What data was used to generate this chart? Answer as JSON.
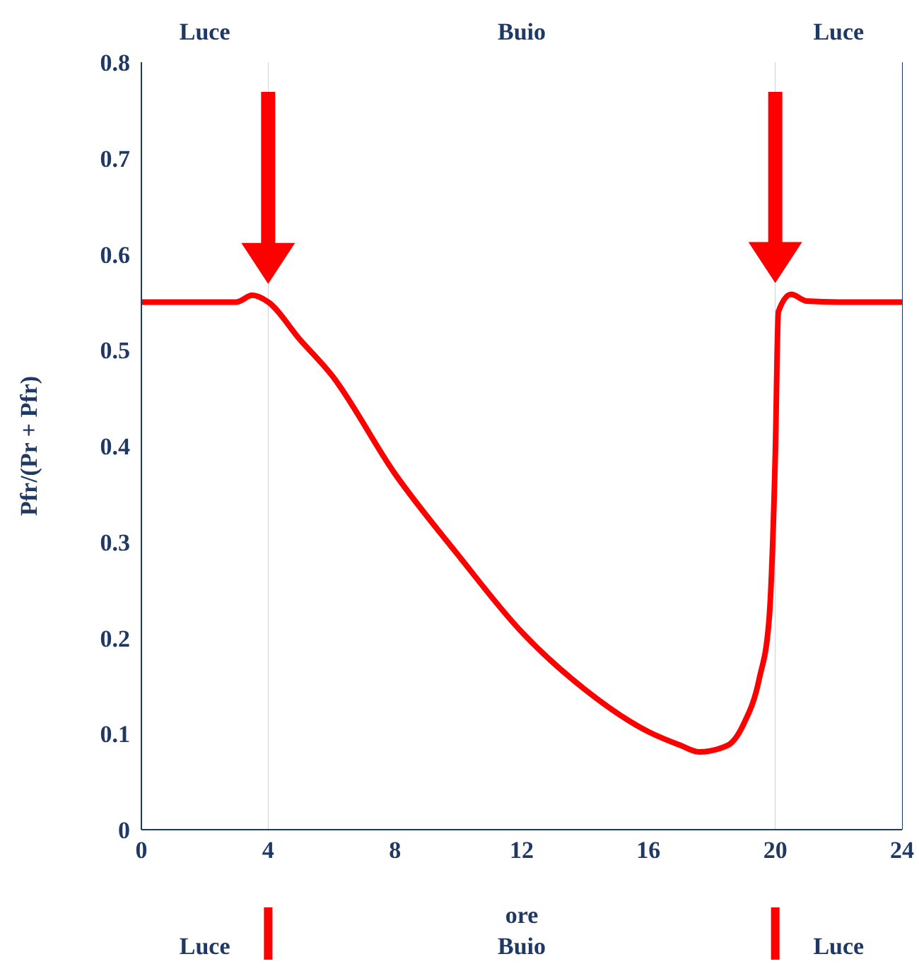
{
  "chart_data": {
    "type": "line",
    "xlabel": "ore",
    "ylabel": "Pfr/(Pr + Pfr)",
    "series": [
      {
        "color": "#ff0000",
        "x": [
          0,
          1,
          2,
          3,
          3.5,
          4,
          5,
          6,
          8,
          10,
          12,
          14,
          16,
          17,
          17.6,
          18.5,
          19,
          19.5,
          19.8,
          20,
          20.1,
          20.5,
          21,
          22,
          24
        ],
        "values": [
          0.55,
          0.55,
          0.55,
          0.55,
          0.557,
          0.55,
          0.511,
          0.474,
          0.371,
          0.286,
          0.206,
          0.146,
          0.102,
          0.088,
          0.081,
          0.088,
          0.11,
          0.158,
          0.217,
          0.39,
          0.54,
          0.558,
          0.551,
          0.55,
          0.55
        ]
      }
    ],
    "xlim": [
      0,
      24
    ],
    "xticks": [
      0,
      4,
      8,
      12,
      16,
      20,
      24
    ],
    "ylim": [
      0,
      0.8
    ],
    "yticks": [
      0,
      0.1,
      0.2,
      0.3,
      0.4,
      0.5,
      0.6,
      0.7,
      0.8
    ],
    "grid": "x",
    "marker": "none",
    "line_style": "solid",
    "bands": [
      {
        "axis": "x",
        "from": 0,
        "to": 4,
        "label": "Luce",
        "color": "#ffffff"
      },
      {
        "axis": "x",
        "from": 4,
        "to": 20,
        "label": "Buio",
        "color": "#ffffff"
      },
      {
        "axis": "x",
        "from": 20,
        "to": 24,
        "label": "Luce",
        "color": "#ffffff"
      }
    ]
  }
}
